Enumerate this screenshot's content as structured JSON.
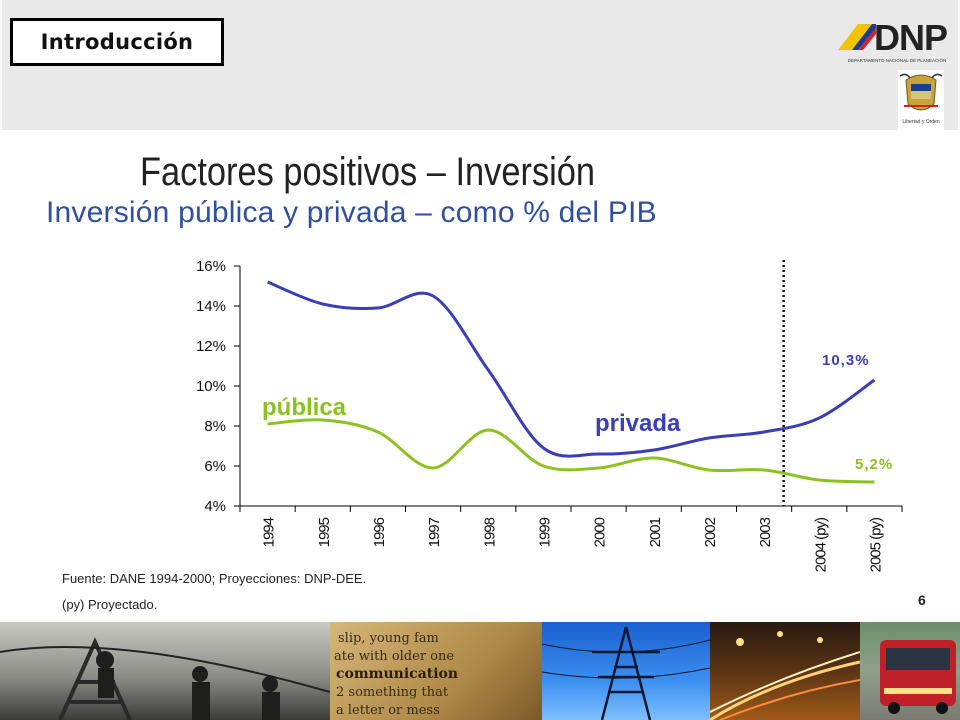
{
  "header": {
    "section_label": "Introducción",
    "logo_text": "DNP",
    "logo_subtitle": "DEPARTAMENTO NACIONAL DE PLANEACIÓN",
    "shield_caption": "Libertad y Orden"
  },
  "title": "Factores positivos – Inversión",
  "subtitle": "Inversión pública y privada – como % del PIB",
  "chart_data": {
    "type": "line",
    "categories": [
      "1994",
      "1995",
      "1996",
      "1997",
      "1998",
      "1999",
      "2000",
      "2001",
      "2002",
      "2003",
      "2004 (py)",
      "2005 (py)"
    ],
    "series": [
      {
        "name": "privada",
        "color": "#3b3fb5",
        "values": [
          15.2,
          14.1,
          13.9,
          14.5,
          10.8,
          6.9,
          6.6,
          6.8,
          7.4,
          7.7,
          8.4,
          10.3
        ]
      },
      {
        "name": "pública",
        "color": "#8cc21f",
        "values": [
          8.1,
          8.3,
          7.7,
          5.9,
          7.8,
          6.0,
          5.9,
          6.4,
          5.8,
          5.8,
          5.3,
          5.2
        ]
      }
    ],
    "yticks": [
      "16%",
      "14%",
      "12%",
      "10%",
      "8%",
      "6%",
      "4%"
    ],
    "ylim": [
      4,
      16
    ],
    "annotations": [
      {
        "text": "10,3%",
        "series": "privada"
      },
      {
        "text": "5,2%",
        "series": "pública"
      }
    ],
    "projection_divider_after": "2003"
  },
  "footer": {
    "source": "Fuente: DANE 1994-2000; Proyecciones: DNP-DEE.",
    "note": "(py) Proyectado.",
    "page_number": "6"
  }
}
